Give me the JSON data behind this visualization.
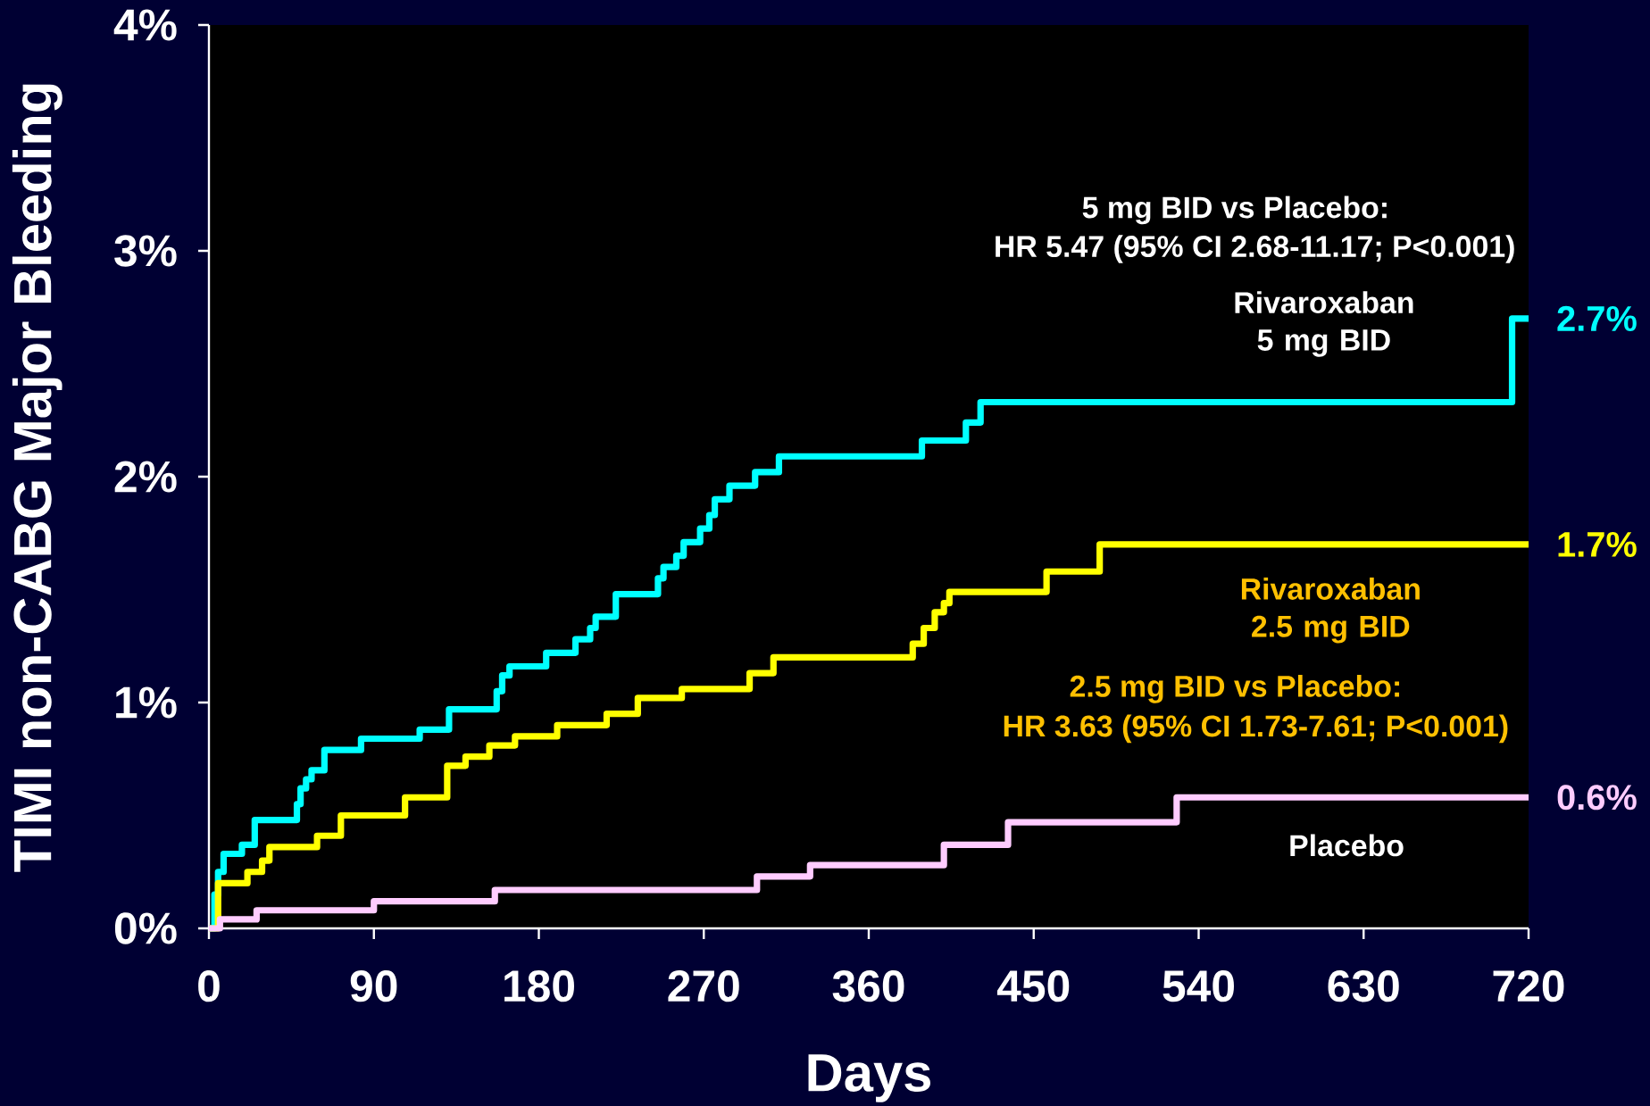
{
  "chart_data": {
    "type": "step",
    "xlabel": "Days",
    "ylabel": "TIMI non-CABG Major Bleeding",
    "xlim": [
      0,
      720
    ],
    "xticks": [
      0,
      90,
      180,
      270,
      360,
      450,
      540,
      630,
      720
    ],
    "ylim": [
      0,
      4
    ],
    "yticks": [
      {
        "value": 0,
        "label": "0%"
      },
      {
        "value": 1,
        "label": "1%"
      },
      {
        "value": 2,
        "label": "2%"
      },
      {
        "value": 3,
        "label": "3%"
      },
      {
        "value": 4,
        "label": "4%"
      }
    ],
    "annotations": [
      "5 mg BID vs Placebo:",
      "HR 5.47 (95% CI 2.68-11.17; P<0.001)",
      "2.5 mg BID vs Placebo:",
      "HR 3.63 (95% CI 1.73-7.61; P<0.001)"
    ],
    "series": [
      {
        "name": "Rivaroxaban 5 mg BID",
        "color": "#00ffff",
        "x": [
          0,
          3,
          5,
          8,
          18,
          25,
          48,
          50,
          53,
          56,
          63,
          83,
          115,
          131,
          157,
          160,
          162,
          164,
          184,
          200,
          202,
          208,
          211,
          222,
          245,
          248,
          253,
          255,
          259,
          268,
          270,
          273,
          276,
          284,
          298,
          311,
          389,
          413,
          417,
          421,
          711,
          720
        ],
        "values": [
          0,
          0.15,
          0.25,
          0.33,
          0.37,
          0.48,
          0.55,
          0.62,
          0.66,
          0.7,
          0.79,
          0.84,
          0.88,
          0.97,
          1.05,
          1.12,
          1.12,
          1.16,
          1.22,
          1.28,
          1.28,
          1.33,
          1.38,
          1.48,
          1.55,
          1.6,
          1.6,
          1.65,
          1.71,
          1.77,
          1.77,
          1.83,
          1.9,
          1.96,
          2.02,
          2.09,
          2.16,
          2.24,
          2.24,
          2.33,
          2.7,
          2.7
        ],
        "value_labels": [
          null,
          null,
          null,
          null,
          null,
          null,
          null,
          null,
          null,
          null,
          null,
          null,
          null,
          null,
          null,
          null,
          null,
          null,
          null,
          null,
          null,
          null,
          null,
          null,
          null,
          null,
          null,
          null,
          null,
          null,
          null,
          null,
          null,
          null,
          null,
          null,
          null,
          null,
          null,
          null,
          null,
          "2.7%"
        ]
      },
      {
        "name": "Rivaroxaban 2.5 mg BID",
        "color": "#ffff00",
        "x": [
          0,
          5,
          21,
          29,
          33,
          36,
          59,
          72,
          107,
          130,
          140,
          153,
          167,
          190,
          217,
          234,
          258,
          295,
          308,
          384,
          390,
          396,
          401,
          404,
          457,
          486,
          720
        ],
        "values": [
          0,
          0.2,
          0.25,
          0.3,
          0.36,
          0.36,
          0.41,
          0.5,
          0.58,
          0.72,
          0.76,
          0.81,
          0.85,
          0.9,
          0.95,
          1.02,
          1.06,
          1.13,
          1.2,
          1.26,
          1.33,
          1.4,
          1.44,
          1.49,
          1.58,
          1.7,
          1.7
        ],
        "value_labels": [
          null,
          null,
          null,
          null,
          null,
          null,
          null,
          null,
          null,
          null,
          null,
          null,
          null,
          null,
          null,
          null,
          null,
          null,
          null,
          null,
          null,
          null,
          null,
          null,
          null,
          null,
          "1.7%"
        ]
      },
      {
        "name": "Placebo",
        "color": "#ffccff",
        "x": [
          0,
          6,
          26,
          90,
          156,
          299,
          328,
          401,
          436,
          528,
          720
        ],
        "values": [
          0,
          0.04,
          0.08,
          0.12,
          0.17,
          0.23,
          0.28,
          0.37,
          0.47,
          0.58,
          0.58
        ],
        "value_labels": [
          null,
          null,
          null,
          null,
          null,
          null,
          null,
          null,
          null,
          null,
          "0.6%"
        ]
      }
    ]
  }
}
